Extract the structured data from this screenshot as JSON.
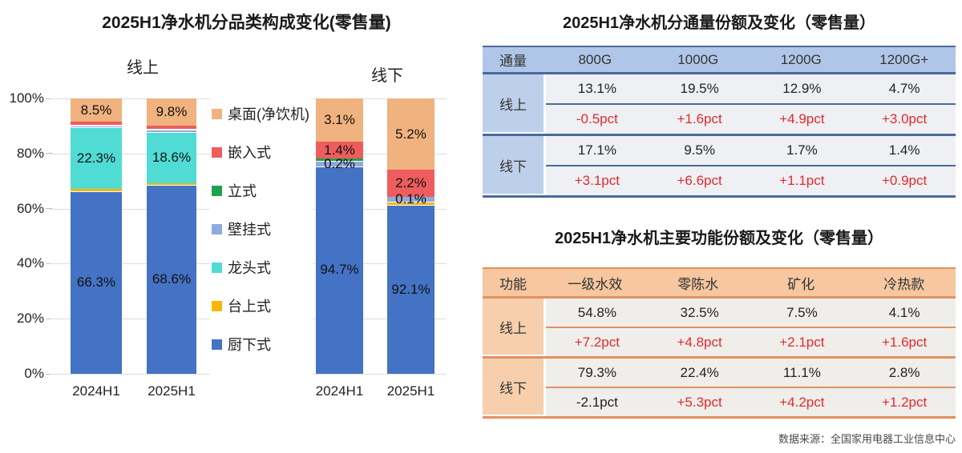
{
  "chart_data": {
    "type": "bar",
    "stacked": true,
    "percent_axis": true,
    "title": "2025H1净水机分品类构成变化(零售量)",
    "xlabel": "",
    "ylabel": "",
    "ylim": [
      0,
      100
    ],
    "yticks": [
      "0%",
      "20%",
      "40%",
      "60%",
      "80%",
      "100%"
    ],
    "grid": true,
    "legend_position": "center-between-groups",
    "group_labels": [
      "线上",
      "线下"
    ],
    "x_categories": [
      "2024H1",
      "2025H1"
    ],
    "legend": [
      {
        "label": "桌面(净饮机)",
        "color": "#F0B27E"
      },
      {
        "label": "嵌入式",
        "color": "#EE5D5D"
      },
      {
        "label": "立式",
        "color": "#20A24D"
      },
      {
        "label": "壁挂式",
        "color": "#8FAADC"
      },
      {
        "label": "龙头式",
        "color": "#50DCD4"
      },
      {
        "label": "台上式",
        "color": "#F8B608"
      },
      {
        "label": "厨下式",
        "color": "#4472C4"
      }
    ],
    "note": "segments listed bottom-to-top; value = true share (%), label = data label shown in chart, h = drawn height as % of plot (offline bars are drawn with exaggerated thin slices in the source image)",
    "bars": [
      {
        "group": "线上",
        "x": "2024H1",
        "segments": [
          {
            "cat": "厨下式",
            "value": 66.3,
            "label": "66.3%",
            "h": 66.3
          },
          {
            "cat": "台上式",
            "value": 0.8,
            "label": null,
            "h": 0.8
          },
          {
            "cat": "龙头式",
            "value": 22.3,
            "label": "22.3%",
            "h": 22.3
          },
          {
            "cat": "壁挂式",
            "value": 0.9,
            "label": null,
            "h": 0.9
          },
          {
            "cat": "立式",
            "value": 0.2,
            "label": null,
            "h": 0.2
          },
          {
            "cat": "嵌入式",
            "value": 1.0,
            "label": null,
            "h": 1.0
          },
          {
            "cat": "桌面(净饮机)",
            "value": 8.5,
            "label": "8.5%",
            "h": 8.5
          }
        ]
      },
      {
        "group": "线上",
        "x": "2025H1",
        "segments": [
          {
            "cat": "厨下式",
            "value": 68.6,
            "label": "68.6%",
            "h": 68.6
          },
          {
            "cat": "台上式",
            "value": 0.7,
            "label": null,
            "h": 0.7
          },
          {
            "cat": "龙头式",
            "value": 18.6,
            "label": "18.6%",
            "h": 18.6
          },
          {
            "cat": "壁挂式",
            "value": 0.8,
            "label": null,
            "h": 0.8
          },
          {
            "cat": "立式",
            "value": 0.2,
            "label": null,
            "h": 0.2
          },
          {
            "cat": "嵌入式",
            "value": 1.3,
            "label": null,
            "h": 1.3
          },
          {
            "cat": "桌面(净饮机)",
            "value": 9.8,
            "label": "9.8%",
            "h": 9.8
          }
        ]
      },
      {
        "group": "线下",
        "x": "2024H1",
        "segments": [
          {
            "cat": "厨下式",
            "value": 94.7,
            "label": "94.7%",
            "h": 75.3
          },
          {
            "cat": "壁挂式",
            "value": 0.2,
            "label": "0.2%",
            "h": 2.0
          },
          {
            "cat": "立式",
            "value": 0.3,
            "label": null,
            "h": 0.9
          },
          {
            "cat": "嵌入式",
            "value": 1.4,
            "label": "1.4%",
            "h": 6.1
          },
          {
            "cat": "桌面(净饮机)",
            "value": 3.1,
            "label": "3.1%",
            "h": 15.7
          }
        ]
      },
      {
        "group": "线下",
        "x": "2025H1",
        "segments": [
          {
            "cat": "厨下式",
            "value": 92.1,
            "label": "92.1%",
            "h": 61.3
          },
          {
            "cat": "台上式",
            "value": 0.2,
            "label": null,
            "h": 1.2
          },
          {
            "cat": "壁挂式",
            "value": 0.1,
            "label": "0.1%",
            "h": 1.7
          },
          {
            "cat": "嵌入式",
            "value": 2.2,
            "label": "2.2%",
            "h": 9.9
          },
          {
            "cat": "桌面(净饮机)",
            "value": 5.2,
            "label": "5.2%",
            "h": 25.9
          }
        ]
      }
    ]
  },
  "flux_table": {
    "title": "2025H1净水机分通量份额及变化（零售量）",
    "header": [
      "通量",
      "800G",
      "1000G",
      "1200G",
      "1200G+"
    ],
    "blocks": [
      {
        "side": "线上",
        "share": [
          "13.1%",
          "19.5%",
          "12.9%",
          "4.7%"
        ],
        "change": [
          "-0.5pct",
          "+1.6pct",
          "+4.9pct",
          "+3.0pct"
        ],
        "change_red": [
          true,
          true,
          true,
          true
        ]
      },
      {
        "side": "线下",
        "share": [
          "17.1%",
          "9.5%",
          "1.7%",
          "1.4%"
        ],
        "change": [
          "+3.1pct",
          "+6.6pct",
          "+1.1pct",
          "+0.9pct"
        ],
        "change_red": [
          true,
          true,
          true,
          true
        ]
      }
    ],
    "theme": {
      "header_bg": "#B0C6E8",
      "side_bg": "#BECFEB",
      "line": "#4A6A9C",
      "body_bg": "#EEF0F3"
    }
  },
  "function_table": {
    "title": "2025H1净水机主要功能份额及变化（零售量）",
    "header": [
      "功能",
      "一级水效",
      "零陈水",
      "矿化",
      "冷热款"
    ],
    "blocks": [
      {
        "side": "线上",
        "share": [
          "54.8%",
          "32.5%",
          "7.5%",
          "4.1%"
        ],
        "change": [
          "+7.2pct",
          "+4.8pct",
          "+2.1pct",
          "+1.6pct"
        ],
        "change_red": [
          true,
          true,
          true,
          true
        ]
      },
      {
        "side": "线下",
        "share": [
          "79.3%",
          "22.4%",
          "11.1%",
          "2.8%"
        ],
        "change": [
          "-2.1pct",
          "+5.3pct",
          "+4.2pct",
          "+1.2pct"
        ],
        "change_red": [
          false,
          true,
          true,
          true
        ]
      }
    ],
    "theme": {
      "header_bg": "#F6C7A0",
      "side_bg": "#F7CFAD",
      "line": "#E2915F",
      "body_bg": "#F0EEEB"
    }
  },
  "colors": {
    "change_red": "#E22A2E",
    "grid": "#DCDCDC"
  },
  "footer": {
    "source": "数据来源：全国家用电器工业信息中心"
  }
}
